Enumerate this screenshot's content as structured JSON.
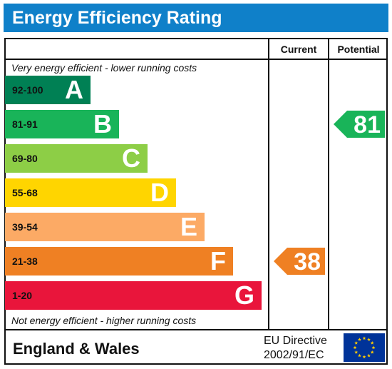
{
  "header": {
    "title": "Energy Efficiency Rating",
    "color": "#0f80c9"
  },
  "columns": {
    "current": "Current",
    "potential": "Potential"
  },
  "captions": {
    "top": "Very energy efficient - lower running costs",
    "bottom": "Not energy efficient - higher running costs"
  },
  "chart_data": {
    "type": "bar",
    "title": "Energy Efficiency Rating",
    "categories": [
      "92-100",
      "81-91",
      "69-80",
      "55-68",
      "39-54",
      "21-38",
      "1-20"
    ],
    "bands": [
      {
        "range": "92-100",
        "letter": "A",
        "color": "#008054"
      },
      {
        "range": "81-91",
        "letter": "B",
        "color": "#19b459"
      },
      {
        "range": "69-80",
        "letter": "C",
        "color": "#8dce46"
      },
      {
        "range": "55-68",
        "letter": "D",
        "color": "#ffd500"
      },
      {
        "range": "39-54",
        "letter": "E",
        "color": "#fcaa65"
      },
      {
        "range": "21-38",
        "letter": "F",
        "color": "#ef8023"
      },
      {
        "range": "1-20",
        "letter": "G",
        "color": "#e9153b"
      }
    ],
    "current": {
      "value": 38,
      "label": "38",
      "band": "F",
      "color": "#ef8023"
    },
    "potential": {
      "value": 81,
      "label": "81",
      "band": "B",
      "color": "#19b459"
    }
  },
  "footer": {
    "region": "England & Wales",
    "directive_line1": "EU Directive",
    "directive_line2": "2002/91/EC",
    "flag_color": "#003399",
    "star_color": "#ffcc00"
  }
}
